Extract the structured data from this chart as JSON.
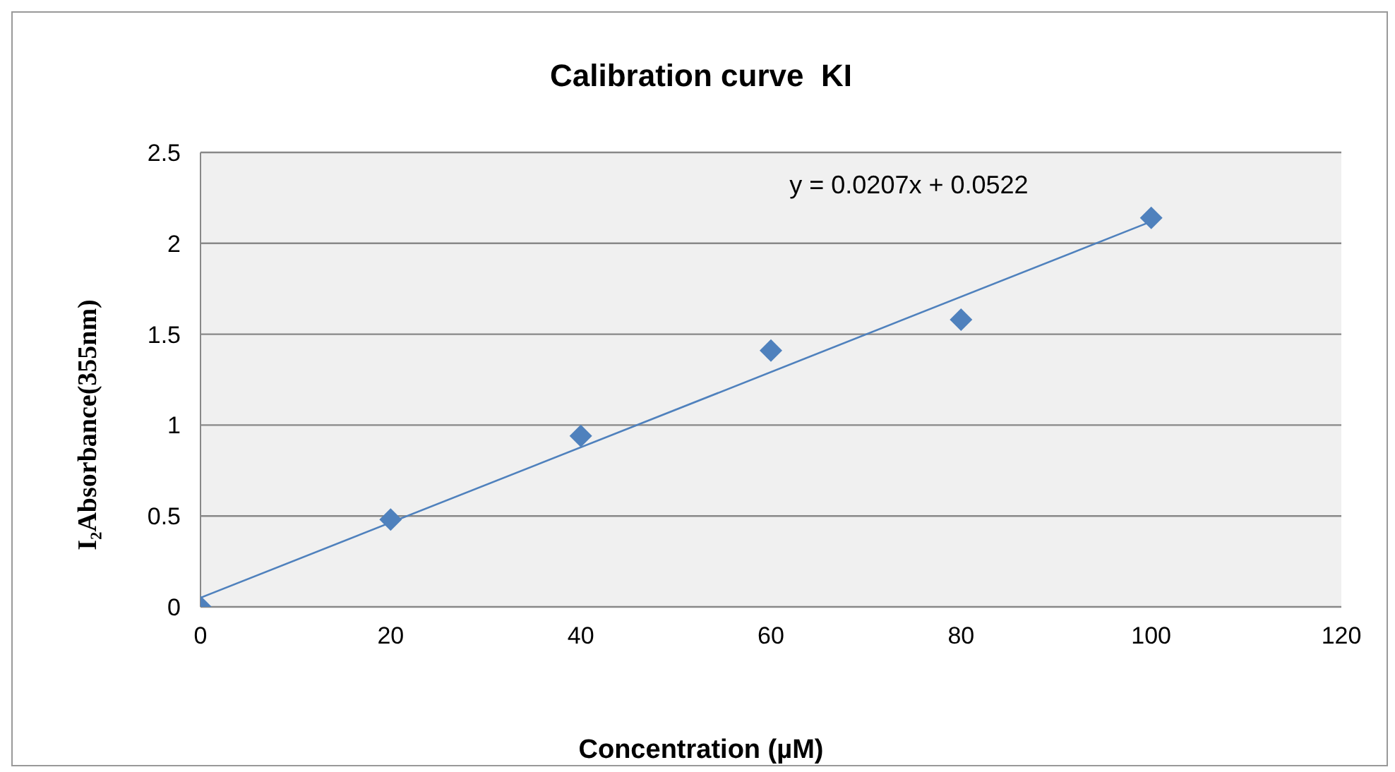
{
  "chart_data": {
    "type": "scatter",
    "title": "Calibration curve  KI",
    "xlabel": "Concentration (µM)",
    "ylabel": "I₂Absorbance(355nm)",
    "x": [
      0,
      20,
      40,
      60,
      80,
      100
    ],
    "series": [
      {
        "color": "#4f81bd",
        "marker": "diamond",
        "values": [
          0,
          0.48,
          0.94,
          1.41,
          1.58,
          2.14
        ]
      },
      {
        "type": "line",
        "color": "#4f81bd",
        "marker": "none",
        "line_style": "solid",
        "x": [
          0,
          100
        ],
        "values": [
          0.05,
          2.12
        ]
      }
    ],
    "annotations": [
      "y = 0.0207x + 0.0522"
    ],
    "xlim": [
      0,
      120
    ],
    "xticks": [
      0,
      20,
      40,
      60,
      80,
      100,
      120
    ],
    "ylim": [
      0,
      2.5
    ],
    "yticks": [
      0,
      0.5,
      1,
      1.5,
      2,
      2.5
    ],
    "grid": "y"
  }
}
